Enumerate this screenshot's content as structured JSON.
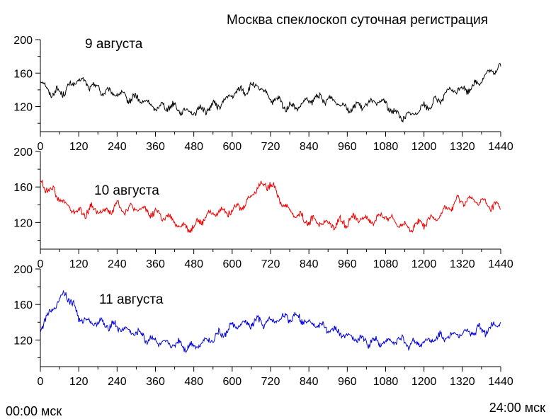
{
  "figure_title": "Москва спеклоскоп суточная регистрация",
  "footer": {
    "start_label": "00:00 мск",
    "end_label": "24:00 мск"
  },
  "chart_data": [
    {
      "type": "line",
      "annotation": "9 августа",
      "color": "#000000",
      "xlim": [
        0,
        1440
      ],
      "ylim": [
        90,
        200
      ],
      "x_ticks": [
        0,
        120,
        240,
        360,
        480,
        600,
        720,
        840,
        960,
        1080,
        1200,
        1320,
        1440
      ],
      "y_ticks": [
        120,
        160,
        200
      ],
      "x": [
        0,
        40,
        80,
        120,
        160,
        200,
        240,
        280,
        320,
        360,
        400,
        440,
        480,
        520,
        560,
        600,
        640,
        680,
        720,
        760,
        800,
        840,
        880,
        920,
        960,
        1000,
        1040,
        1080,
        1120,
        1160,
        1200,
        1240,
        1280,
        1320,
        1360,
        1400,
        1440
      ],
      "values": [
        150,
        135,
        140,
        152,
        145,
        138,
        135,
        130,
        128,
        118,
        122,
        116,
        113,
        118,
        122,
        135,
        140,
        145,
        130,
        122,
        118,
        128,
        130,
        127,
        118,
        120,
        126,
        124,
        108,
        110,
        120,
        125,
        140,
        140,
        145,
        160,
        168
      ]
    },
    {
      "type": "line",
      "annotation": "10 августа",
      "color": "#ee0000",
      "xlim": [
        0,
        1440
      ],
      "ylim": [
        90,
        200
      ],
      "x_ticks": [
        0,
        120,
        240,
        360,
        480,
        600,
        720,
        840,
        960,
        1080,
        1200,
        1320,
        1440
      ],
      "y_ticks": [
        120,
        160,
        200
      ],
      "x": [
        0,
        40,
        80,
        120,
        160,
        200,
        240,
        280,
        320,
        360,
        400,
        440,
        480,
        520,
        560,
        600,
        640,
        680,
        720,
        760,
        800,
        840,
        880,
        920,
        960,
        1000,
        1040,
        1080,
        1120,
        1160,
        1200,
        1240,
        1280,
        1320,
        1360,
        1400,
        1440
      ],
      "values": [
        165,
        155,
        140,
        130,
        135,
        132,
        138,
        135,
        135,
        130,
        125,
        115,
        115,
        128,
        132,
        135,
        140,
        160,
        165,
        140,
        128,
        122,
        120,
        118,
        122,
        125,
        122,
        128,
        118,
        115,
        120,
        125,
        138,
        145,
        145,
        140,
        135
      ]
    },
    {
      "type": "line",
      "annotation": "11 августа",
      "color": "#0000dd",
      "xlim": [
        0,
        1440
      ],
      "ylim": [
        90,
        200
      ],
      "x_ticks": [
        0,
        120,
        240,
        360,
        480,
        600,
        720,
        840,
        960,
        1080,
        1200,
        1320,
        1440
      ],
      "y_ticks": [
        120,
        160,
        200
      ],
      "x": [
        0,
        40,
        80,
        120,
        160,
        200,
        240,
        280,
        320,
        360,
        400,
        440,
        480,
        520,
        560,
        600,
        640,
        680,
        720,
        760,
        800,
        840,
        880,
        920,
        960,
        1000,
        1040,
        1080,
        1120,
        1160,
        1200,
        1240,
        1280,
        1320,
        1360,
        1400,
        1440
      ],
      "values": [
        135,
        155,
        175,
        145,
        140,
        138,
        135,
        130,
        125,
        118,
        116,
        115,
        112,
        120,
        125,
        135,
        138,
        140,
        140,
        145,
        147,
        140,
        135,
        130,
        125,
        120,
        118,
        118,
        120,
        115,
        118,
        122,
        125,
        128,
        130,
        132,
        140
      ]
    }
  ]
}
